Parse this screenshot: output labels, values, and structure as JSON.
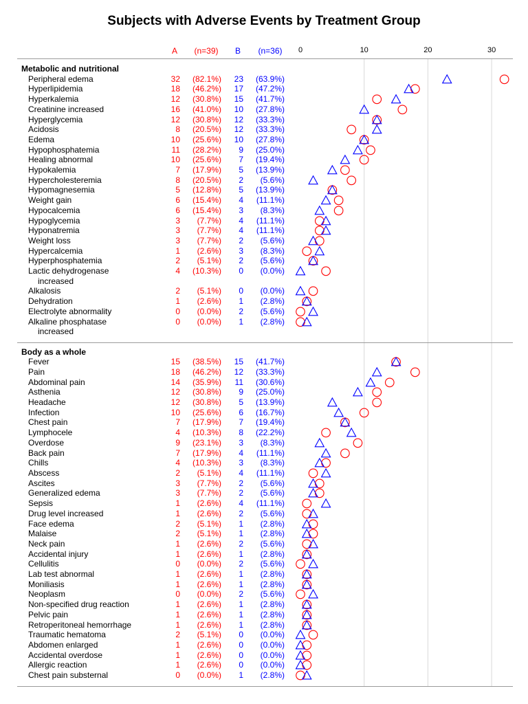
{
  "chart_data": {
    "type": "scatter",
    "title": "Subjects with Adverse Events by Treatment Group",
    "columns": {
      "a_label": "A",
      "a_n": "(n=39)",
      "b_label": "B",
      "b_n": "(n=36)"
    },
    "xlim": [
      0,
      32
    ],
    "xticks": [
      "0",
      "10",
      "20",
      "30"
    ],
    "grid": "vertical",
    "series": [
      {
        "name": "A",
        "marker": "circle",
        "color": "#ff0000"
      },
      {
        "name": "B",
        "marker": "triangle",
        "color": "#0000ff"
      }
    ],
    "sections": [
      {
        "title": "Metabolic and nutritional",
        "rows": [
          {
            "label": "Peripheral edema",
            "a": 32,
            "ap": "(82.1%)",
            "b": 23,
            "bp": "(63.9%)"
          },
          {
            "label": "Hyperlipidemia",
            "a": 18,
            "ap": "(46.2%)",
            "b": 17,
            "bp": "(47.2%)"
          },
          {
            "label": "Hyperkalemia",
            "a": 12,
            "ap": "(30.8%)",
            "b": 15,
            "bp": "(41.7%)"
          },
          {
            "label": "Creatinine increased",
            "a": 16,
            "ap": "(41.0%)",
            "b": 10,
            "bp": "(27.8%)"
          },
          {
            "label": "Hyperglycemia",
            "a": 12,
            "ap": "(30.8%)",
            "b": 12,
            "bp": "(33.3%)"
          },
          {
            "label": "Acidosis",
            "a": 8,
            "ap": "(20.5%)",
            "b": 12,
            "bp": "(33.3%)"
          },
          {
            "label": "Edema",
            "a": 10,
            "ap": "(25.6%)",
            "b": 10,
            "bp": "(27.8%)"
          },
          {
            "label": "Hypophosphatemia",
            "a": 11,
            "ap": "(28.2%)",
            "b": 9,
            "bp": "(25.0%)"
          },
          {
            "label": "Healing abnormal",
            "a": 10,
            "ap": "(25.6%)",
            "b": 7,
            "bp": "(19.4%)"
          },
          {
            "label": "Hypokalemia",
            "a": 7,
            "ap": "(17.9%)",
            "b": 5,
            "bp": "(13.9%)"
          },
          {
            "label": "Hypercholesteremia",
            "a": 8,
            "ap": "(20.5%)",
            "b": 2,
            "bp": "(5.6%)"
          },
          {
            "label": "Hypomagnesemia",
            "a": 5,
            "ap": "(12.8%)",
            "b": 5,
            "bp": "(13.9%)"
          },
          {
            "label": "Weight gain",
            "a": 6,
            "ap": "(15.4%)",
            "b": 4,
            "bp": "(11.1%)"
          },
          {
            "label": "Hypocalcemia",
            "a": 6,
            "ap": "(15.4%)",
            "b": 3,
            "bp": "(8.3%)"
          },
          {
            "label": "Hypoglycemia",
            "a": 3,
            "ap": "(7.7%)",
            "b": 4,
            "bp": "(11.1%)"
          },
          {
            "label": "Hyponatremia",
            "a": 3,
            "ap": "(7.7%)",
            "b": 4,
            "bp": "(11.1%)"
          },
          {
            "label": "Weight loss",
            "a": 3,
            "ap": "(7.7%)",
            "b": 2,
            "bp": "(5.6%)"
          },
          {
            "label": "Hypercalcemia",
            "a": 1,
            "ap": "(2.6%)",
            "b": 3,
            "bp": "(8.3%)"
          },
          {
            "label": "Hyperphosphatemia",
            "a": 2,
            "ap": "(5.1%)",
            "b": 2,
            "bp": "(5.6%)"
          },
          {
            "label": "Lactic dehydrogenase",
            "label2": "increased",
            "a": 4,
            "ap": "(10.3%)",
            "b": 0,
            "bp": "(0.0%)"
          },
          {
            "label": "Alkalosis",
            "a": 2,
            "ap": "(5.1%)",
            "b": 0,
            "bp": "(0.0%)"
          },
          {
            "label": "Dehydration",
            "a": 1,
            "ap": "(2.6%)",
            "b": 1,
            "bp": "(2.8%)"
          },
          {
            "label": "Electrolyte abnormality",
            "a": 0,
            "ap": "(0.0%)",
            "b": 2,
            "bp": "(5.6%)"
          },
          {
            "label": "Alkaline phosphatase",
            "label2": "increased",
            "a": 0,
            "ap": "(0.0%)",
            "b": 1,
            "bp": "(2.8%)"
          }
        ]
      },
      {
        "title": "Body as a whole",
        "rows": [
          {
            "label": "Fever",
            "a": 15,
            "ap": "(38.5%)",
            "b": 15,
            "bp": "(41.7%)"
          },
          {
            "label": "Pain",
            "a": 18,
            "ap": "(46.2%)",
            "b": 12,
            "bp": "(33.3%)"
          },
          {
            "label": "Abdominal pain",
            "a": 14,
            "ap": "(35.9%)",
            "b": 11,
            "bp": "(30.6%)"
          },
          {
            "label": "Asthenia",
            "a": 12,
            "ap": "(30.8%)",
            "b": 9,
            "bp": "(25.0%)"
          },
          {
            "label": "Headache",
            "a": 12,
            "ap": "(30.8%)",
            "b": 5,
            "bp": "(13.9%)"
          },
          {
            "label": "Infection",
            "a": 10,
            "ap": "(25.6%)",
            "b": 6,
            "bp": "(16.7%)"
          },
          {
            "label": "Chest pain",
            "a": 7,
            "ap": "(17.9%)",
            "b": 7,
            "bp": "(19.4%)"
          },
          {
            "label": "Lymphocele",
            "a": 4,
            "ap": "(10.3%)",
            "b": 8,
            "bp": "(22.2%)"
          },
          {
            "label": "Overdose",
            "a": 9,
            "ap": "(23.1%)",
            "b": 3,
            "bp": "(8.3%)"
          },
          {
            "label": "Back pain",
            "a": 7,
            "ap": "(17.9%)",
            "b": 4,
            "bp": "(11.1%)"
          },
          {
            "label": "Chills",
            "a": 4,
            "ap": "(10.3%)",
            "b": 3,
            "bp": "(8.3%)"
          },
          {
            "label": "Abscess",
            "a": 2,
            "ap": "(5.1%)",
            "b": 4,
            "bp": "(11.1%)"
          },
          {
            "label": "Ascites",
            "a": 3,
            "ap": "(7.7%)",
            "b": 2,
            "bp": "(5.6%)"
          },
          {
            "label": "Generalized edema",
            "a": 3,
            "ap": "(7.7%)",
            "b": 2,
            "bp": "(5.6%)"
          },
          {
            "label": "Sepsis",
            "a": 1,
            "ap": "(2.6%)",
            "b": 4,
            "bp": "(11.1%)"
          },
          {
            "label": "Drug level increased",
            "a": 1,
            "ap": "(2.6%)",
            "b": 2,
            "bp": "(5.6%)"
          },
          {
            "label": "Face edema",
            "a": 2,
            "ap": "(5.1%)",
            "b": 1,
            "bp": "(2.8%)"
          },
          {
            "label": "Malaise",
            "a": 2,
            "ap": "(5.1%)",
            "b": 1,
            "bp": "(2.8%)"
          },
          {
            "label": "Neck pain",
            "a": 1,
            "ap": "(2.6%)",
            "b": 2,
            "bp": "(5.6%)"
          },
          {
            "label": "Accidental injury",
            "a": 1,
            "ap": "(2.6%)",
            "b": 1,
            "bp": "(2.8%)"
          },
          {
            "label": "Cellulitis",
            "a": 0,
            "ap": "(0.0%)",
            "b": 2,
            "bp": "(5.6%)"
          },
          {
            "label": "Lab test abnormal",
            "a": 1,
            "ap": "(2.6%)",
            "b": 1,
            "bp": "(2.8%)"
          },
          {
            "label": "Moniliasis",
            "a": 1,
            "ap": "(2.6%)",
            "b": 1,
            "bp": "(2.8%)"
          },
          {
            "label": "Neoplasm",
            "a": 0,
            "ap": "(0.0%)",
            "b": 2,
            "bp": "(5.6%)"
          },
          {
            "label": "Non-specified drug reaction",
            "a": 1,
            "ap": "(2.6%)",
            "b": 1,
            "bp": "(2.8%)"
          },
          {
            "label": "Pelvic pain",
            "a": 1,
            "ap": "(2.6%)",
            "b": 1,
            "bp": "(2.8%)"
          },
          {
            "label": "Retroperitoneal hemorrhage",
            "a": 1,
            "ap": "(2.6%)",
            "b": 1,
            "bp": "(2.8%)"
          },
          {
            "label": "Traumatic hematoma",
            "a": 2,
            "ap": "(5.1%)",
            "b": 0,
            "bp": "(0.0%)"
          },
          {
            "label": "Abdomen enlarged",
            "a": 1,
            "ap": "(2.6%)",
            "b": 0,
            "bp": "(0.0%)"
          },
          {
            "label": "Accidental overdose",
            "a": 1,
            "ap": "(2.6%)",
            "b": 0,
            "bp": "(0.0%)"
          },
          {
            "label": "Allergic reaction",
            "a": 1,
            "ap": "(2.6%)",
            "b": 0,
            "bp": "(0.0%)"
          },
          {
            "label": "Chest pain substernal",
            "a": 0,
            "ap": "(0.0%)",
            "b": 1,
            "bp": "(2.8%)"
          }
        ]
      }
    ]
  }
}
